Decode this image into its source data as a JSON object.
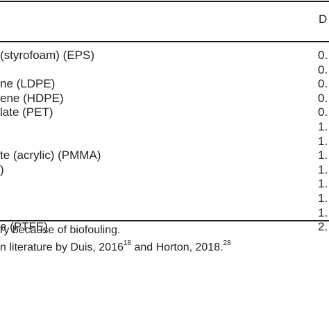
{
  "table": {
    "header_value_col": "D",
    "rows": [
      {
        "name": "(styrofoam) (EPS)",
        "value": "0."
      },
      {
        "name": "",
        "value": "0."
      },
      {
        "name": "ne (LDPE)",
        "value": "0."
      },
      {
        "name": "ene (HDPE)",
        "value": "0."
      },
      {
        "name": "late (PET)",
        "value": "0."
      },
      {
        "name": "",
        "value": "1."
      },
      {
        "name": "",
        "value": "1."
      },
      {
        "name": "te (acrylic) (PMMA)",
        "value": "1."
      },
      {
        "name": ")",
        "value": "1."
      },
      {
        "name": "",
        "value": "1."
      },
      {
        "name": "",
        "value": "1."
      },
      {
        "name": "",
        "value": "1."
      },
      {
        "name": "e (PTFE)",
        "value": "2."
      }
    ]
  },
  "footnotes": {
    "line1": "ry because of biofouling.",
    "line2_pre": "n literature by Duis, 2016",
    "line2_sup1": "18",
    "line2_mid": " and Horton, 2018.",
    "line2_sup2": "28"
  }
}
